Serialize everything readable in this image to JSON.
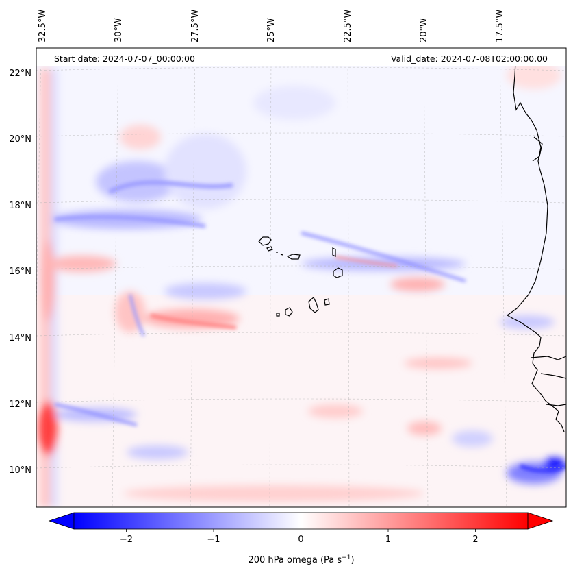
{
  "map": {
    "start_label": "Start date: 2024-07-07_00:00:00",
    "valid_label": "Valid_date: 2024-07-08T02:00:00.00",
    "lon_labels": [
      "32.5°W",
      "30°W",
      "27.5°W",
      "25°W",
      "22.5°W",
      "20°W",
      "17.5°W"
    ],
    "lat_labels": [
      "22°N",
      "20°N",
      "18°N",
      "16°N",
      "14°N",
      "12°N",
      "10°N"
    ]
  },
  "colorbar": {
    "label": "200 hPa omega (Pa s",
    "label_exponent": "−1",
    "label_close": ")",
    "ticks": [
      "−2",
      "−1",
      "0",
      "1",
      "2"
    ],
    "tick_values": [
      -2,
      -1,
      0,
      1,
      2
    ],
    "range": [
      -2.6,
      2.6
    ]
  },
  "colors": {
    "negative": "#0000ff",
    "zero": "#ffffff",
    "positive": "#ff0000",
    "coast": "#000000",
    "grid": "#b0b0b0"
  }
}
